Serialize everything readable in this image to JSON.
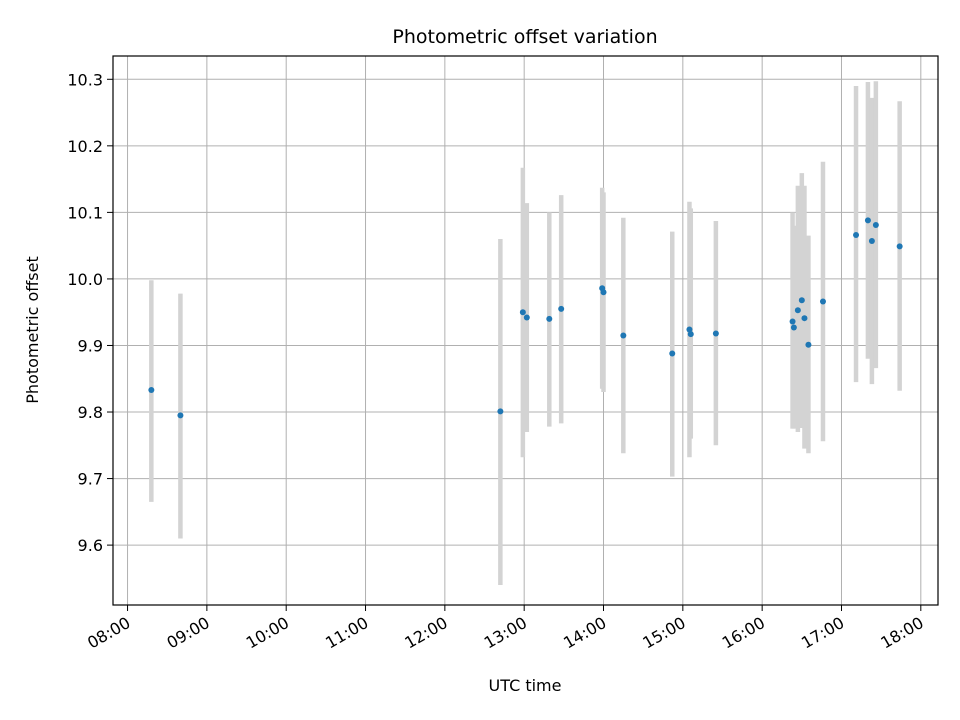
{
  "chart_data": {
    "type": "scatter",
    "title": "Photometric offset variation",
    "xlabel": "UTC time",
    "ylabel": "Photometric offset",
    "xlim": [
      "07:49",
      "18:13"
    ],
    "ylim": [
      9.51,
      10.335
    ],
    "x_ticks": [
      "08:00",
      "09:00",
      "10:00",
      "11:00",
      "12:00",
      "13:00",
      "14:00",
      "15:00",
      "16:00",
      "17:00",
      "18:00"
    ],
    "y_ticks": [
      "9.6",
      "9.7",
      "9.8",
      "9.9",
      "10.0",
      "10.1",
      "10.2",
      "10.3"
    ],
    "grid": true,
    "point_color": "#1f77b4",
    "errorbar_color": "#d3d3d3",
    "points": [
      {
        "time": "08:18",
        "value": 9.833,
        "err_low": 9.665,
        "err_high": 9.998
      },
      {
        "time": "08:40",
        "value": 9.795,
        "err_low": 9.61,
        "err_high": 9.978
      },
      {
        "time": "12:42",
        "value": 9.801,
        "err_low": 9.54,
        "err_high": 10.06
      },
      {
        "time": "12:59",
        "value": 9.95,
        "err_low": 9.732,
        "err_high": 10.167
      },
      {
        "time": "13:02",
        "value": 9.942,
        "err_low": 9.77,
        "err_high": 10.114
      },
      {
        "time": "13:19",
        "value": 9.94,
        "err_low": 9.778,
        "err_high": 10.1
      },
      {
        "time": "13:28",
        "value": 9.955,
        "err_low": 9.783,
        "err_high": 10.126
      },
      {
        "time": "13:59",
        "value": 9.986,
        "err_low": 9.835,
        "err_high": 10.137
      },
      {
        "time": "14:00",
        "value": 9.98,
        "err_low": 9.83,
        "err_high": 10.13
      },
      {
        "time": "14:15",
        "value": 9.915,
        "err_low": 9.738,
        "err_high": 10.092
      },
      {
        "time": "14:52",
        "value": 9.888,
        "err_low": 9.703,
        "err_high": 10.071
      },
      {
        "time": "15:05",
        "value": 9.924,
        "err_low": 9.732,
        "err_high": 10.116
      },
      {
        "time": "15:06",
        "value": 9.917,
        "err_low": 9.76,
        "err_high": 10.106
      },
      {
        "time": "15:25",
        "value": 9.918,
        "err_low": 9.75,
        "err_high": 10.087
      },
      {
        "time": "16:23",
        "value": 9.936,
        "err_low": 9.775,
        "err_high": 10.1
      },
      {
        "time": "16:24",
        "value": 9.927,
        "err_low": 9.775,
        "err_high": 10.08
      },
      {
        "time": "16:27",
        "value": 9.953,
        "err_low": 9.77,
        "err_high": 10.14
      },
      {
        "time": "16:30",
        "value": 9.968,
        "err_low": 9.776,
        "err_high": 10.159
      },
      {
        "time": "16:32",
        "value": 9.941,
        "err_low": 9.745,
        "err_high": 10.14
      },
      {
        "time": "16:35",
        "value": 9.901,
        "err_low": 9.738,
        "err_high": 10.065
      },
      {
        "time": "16:46",
        "value": 9.966,
        "err_low": 9.756,
        "err_high": 10.176
      },
      {
        "time": "17:11",
        "value": 10.066,
        "err_low": 9.845,
        "err_high": 10.29
      },
      {
        "time": "17:20",
        "value": 10.088,
        "err_low": 9.88,
        "err_high": 10.296
      },
      {
        "time": "17:23",
        "value": 10.057,
        "err_low": 9.842,
        "err_high": 10.272
      },
      {
        "time": "17:26",
        "value": 10.081,
        "err_low": 9.866,
        "err_high": 10.297
      },
      {
        "time": "17:44",
        "value": 10.049,
        "err_low": 9.832,
        "err_high": 10.267
      }
    ]
  }
}
